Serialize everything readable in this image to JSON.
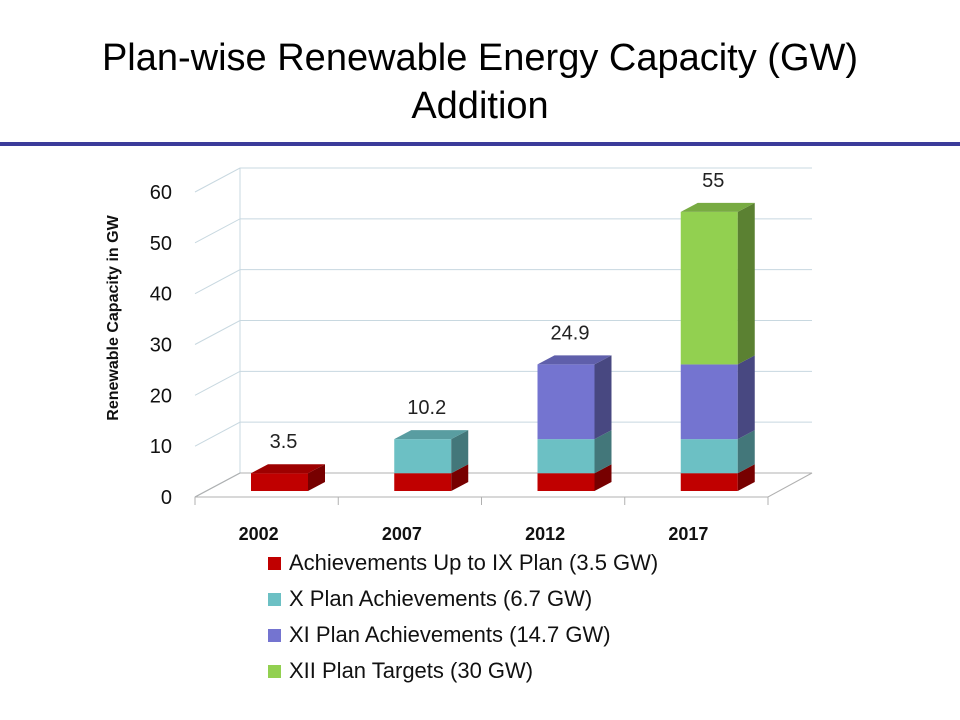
{
  "slide": {
    "title_line1": "Plan-wise Renewable Energy Capacity (GW)",
    "title_line2": "Addition"
  },
  "chart_data": {
    "type": "bar",
    "stacked": true,
    "three_d": true,
    "categories": [
      "2002",
      "2007",
      "2012",
      "2017"
    ],
    "series": [
      {
        "name": "Achievements Up to IX Plan (3.5 GW)",
        "color": "#c00000",
        "values": [
          3.5,
          3.5,
          3.5,
          3.5
        ]
      },
      {
        "name": "X Plan Achievements (6.7 GW)",
        "color": "#6cc0c4",
        "values": [
          0,
          6.7,
          6.7,
          6.7
        ]
      },
      {
        "name": "XI Plan Achievements (14.7 GW)",
        "color": "#7474d0",
        "values": [
          0,
          0,
          14.7,
          14.7
        ]
      },
      {
        "name": "XII Plan Targets (30 GW)",
        "color": "#92d050",
        "values": [
          0,
          0,
          0,
          30
        ]
      }
    ],
    "totals": [
      "3.5",
      "10.2",
      "24.9",
      "55"
    ],
    "ylabel": "Renewable Capacity in GW",
    "ylim": [
      0,
      60
    ],
    "yticks": [
      "0",
      "10",
      "20",
      "30",
      "40",
      "50",
      "60"
    ],
    "grid": true,
    "legend_position": "bottom"
  }
}
